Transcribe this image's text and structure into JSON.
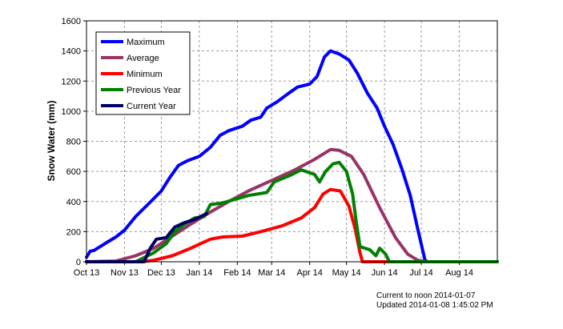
{
  "chart_data": {
    "type": "line",
    "ylabel": "Snow Water (mm)",
    "xlabel": "",
    "title": "",
    "ylim": [
      0,
      1600
    ],
    "yticks": [
      0,
      200,
      400,
      600,
      800,
      1000,
      1200,
      1400,
      1600
    ],
    "xlim": [
      "2013-10-01",
      "2014-09-01"
    ],
    "xticks": [
      {
        "date": "2013-10-01",
        "label": "Oct 13"
      },
      {
        "date": "2013-11-01",
        "label": "Nov 13"
      },
      {
        "date": "2013-12-01",
        "label": "Dec 13"
      },
      {
        "date": "2014-01-01",
        "label": "Jan 14"
      },
      {
        "date": "2014-02-01",
        "label": "Feb 14"
      },
      {
        "date": "2014-03-01",
        "label": "Mar 14"
      },
      {
        "date": "2014-04-01",
        "label": "Apr 14"
      },
      {
        "date": "2014-05-01",
        "label": "May 14"
      },
      {
        "date": "2014-06-01",
        "label": "Jun 14"
      },
      {
        "date": "2014-07-01",
        "label": "Jul 14"
      },
      {
        "date": "2014-08-01",
        "label": "Aug 14"
      }
    ],
    "grid": true,
    "legend_position": "top-left",
    "series": [
      {
        "name": "Maximum",
        "color": "#0000ff",
        "points": [
          [
            "2013-10-01",
            30
          ],
          [
            "2013-10-04",
            70
          ],
          [
            "2013-10-07",
            75
          ],
          [
            "2013-10-12",
            100
          ],
          [
            "2013-10-18",
            130
          ],
          [
            "2013-10-25",
            165
          ],
          [
            "2013-11-01",
            210
          ],
          [
            "2013-11-10",
            300
          ],
          [
            "2013-11-20",
            380
          ],
          [
            "2013-12-01",
            470
          ],
          [
            "2013-12-08",
            560
          ],
          [
            "2013-12-15",
            640
          ],
          [
            "2013-12-22",
            670
          ],
          [
            "2014-01-01",
            700
          ],
          [
            "2014-01-10",
            760
          ],
          [
            "2014-01-18",
            840
          ],
          [
            "2014-01-25",
            870
          ],
          [
            "2014-02-05",
            900
          ],
          [
            "2014-02-12",
            940
          ],
          [
            "2014-02-20",
            960
          ],
          [
            "2014-02-25",
            1020
          ],
          [
            "2014-03-05",
            1060
          ],
          [
            "2014-03-15",
            1120
          ],
          [
            "2014-03-22",
            1160
          ],
          [
            "2014-04-01",
            1180
          ],
          [
            "2014-04-07",
            1230
          ],
          [
            "2014-04-13",
            1360
          ],
          [
            "2014-04-18",
            1400
          ],
          [
            "2014-04-25",
            1380
          ],
          [
            "2014-05-03",
            1340
          ],
          [
            "2014-05-10",
            1250
          ],
          [
            "2014-05-18",
            1120
          ],
          [
            "2014-05-26",
            1020
          ],
          [
            "2014-06-01",
            900
          ],
          [
            "2014-06-08",
            780
          ],
          [
            "2014-06-15",
            620
          ],
          [
            "2014-06-22",
            440
          ],
          [
            "2014-06-28",
            220
          ],
          [
            "2014-07-04",
            10
          ],
          [
            "2014-07-06",
            0
          ],
          [
            "2014-09-01",
            0
          ]
        ]
      },
      {
        "name": "Average",
        "color": "#993366",
        "points": [
          [
            "2013-10-01",
            0
          ],
          [
            "2013-10-25",
            5
          ],
          [
            "2013-11-10",
            40
          ],
          [
            "2013-11-25",
            90
          ],
          [
            "2013-12-10",
            170
          ],
          [
            "2013-12-25",
            250
          ],
          [
            "2014-01-10",
            330
          ],
          [
            "2014-01-25",
            400
          ],
          [
            "2014-02-10",
            470
          ],
          [
            "2014-03-01",
            540
          ],
          [
            "2014-03-20",
            610
          ],
          [
            "2014-04-05",
            680
          ],
          [
            "2014-04-18",
            745
          ],
          [
            "2014-04-25",
            740
          ],
          [
            "2014-05-05",
            700
          ],
          [
            "2014-05-15",
            580
          ],
          [
            "2014-05-28",
            360
          ],
          [
            "2014-06-10",
            160
          ],
          [
            "2014-06-20",
            50
          ],
          [
            "2014-06-28",
            10
          ],
          [
            "2014-07-05",
            0
          ],
          [
            "2014-09-01",
            0
          ]
        ]
      },
      {
        "name": "Minimum",
        "color": "#ff0000",
        "points": [
          [
            "2013-10-01",
            0
          ],
          [
            "2013-11-15",
            0
          ],
          [
            "2013-11-25",
            10
          ],
          [
            "2013-12-10",
            40
          ],
          [
            "2013-12-25",
            90
          ],
          [
            "2014-01-10",
            150
          ],
          [
            "2014-01-20",
            165
          ],
          [
            "2014-02-05",
            170
          ],
          [
            "2014-02-20",
            200
          ],
          [
            "2014-03-10",
            240
          ],
          [
            "2014-03-25",
            290
          ],
          [
            "2014-04-05",
            360
          ],
          [
            "2014-04-12",
            450
          ],
          [
            "2014-04-18",
            480
          ],
          [
            "2014-04-26",
            470
          ],
          [
            "2014-05-03",
            370
          ],
          [
            "2014-05-08",
            220
          ],
          [
            "2014-05-12",
            60
          ],
          [
            "2014-05-14",
            0
          ],
          [
            "2014-06-05",
            0
          ]
        ]
      },
      {
        "name": "Previous Year",
        "color": "#008000",
        "points": [
          [
            "2013-10-01",
            0
          ],
          [
            "2013-11-10",
            0
          ],
          [
            "2013-11-25",
            60
          ],
          [
            "2013-12-05",
            120
          ],
          [
            "2013-12-12",
            200
          ],
          [
            "2013-12-20",
            250
          ],
          [
            "2013-12-28",
            290
          ],
          [
            "2014-01-05",
            300
          ],
          [
            "2014-01-10",
            380
          ],
          [
            "2014-01-20",
            390
          ],
          [
            "2014-01-28",
            410
          ],
          [
            "2014-02-10",
            440
          ],
          [
            "2014-02-25",
            460
          ],
          [
            "2014-03-03",
            530
          ],
          [
            "2014-03-15",
            570
          ],
          [
            "2014-03-25",
            610
          ],
          [
            "2014-04-05",
            580
          ],
          [
            "2014-04-09",
            530
          ],
          [
            "2014-04-14",
            600
          ],
          [
            "2014-04-20",
            650
          ],
          [
            "2014-04-25",
            660
          ],
          [
            "2014-05-01",
            600
          ],
          [
            "2014-05-06",
            450
          ],
          [
            "2014-05-09",
            260
          ],
          [
            "2014-05-12",
            100
          ],
          [
            "2014-05-20",
            80
          ],
          [
            "2014-05-25",
            40
          ],
          [
            "2014-05-28",
            90
          ],
          [
            "2014-06-02",
            50
          ],
          [
            "2014-06-05",
            0
          ],
          [
            "2014-09-01",
            0
          ]
        ]
      },
      {
        "name": "Current Year",
        "color": "#000066",
        "points": [
          [
            "2013-10-01",
            0
          ],
          [
            "2013-11-17",
            0
          ],
          [
            "2013-11-22",
            90
          ],
          [
            "2013-11-27",
            150
          ],
          [
            "2013-12-05",
            160
          ],
          [
            "2013-12-12",
            230
          ],
          [
            "2013-12-20",
            260
          ],
          [
            "2013-12-28",
            280
          ],
          [
            "2014-01-07",
            320
          ]
        ]
      }
    ]
  },
  "footer": {
    "current_to": "Current to noon 2014-01-07",
    "updated": "Updated 2014-01-08 1:45:02 PM"
  }
}
